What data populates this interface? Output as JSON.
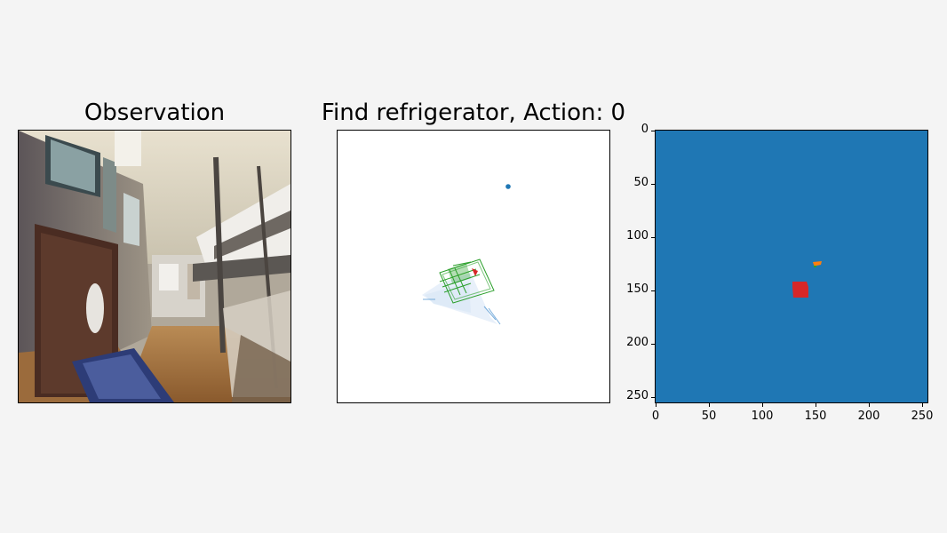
{
  "panels": {
    "observation": {
      "title": "Observation"
    },
    "map": {
      "title": "Find refrigerator, Action: 0"
    },
    "semantic": {
      "y_ticks": [
        "0",
        "50",
        "100",
        "150",
        "200",
        "250"
      ],
      "x_ticks": [
        "0",
        "50",
        "100",
        "150",
        "200",
        "250"
      ]
    }
  },
  "colors": {
    "background": "#f4f4f4",
    "semantic_bg": "#1f77b4",
    "agent": "#d62728",
    "goal_marker": "#1f77b4",
    "explored": "#2ca02c",
    "orange_blob": "#ff7f0e"
  }
}
